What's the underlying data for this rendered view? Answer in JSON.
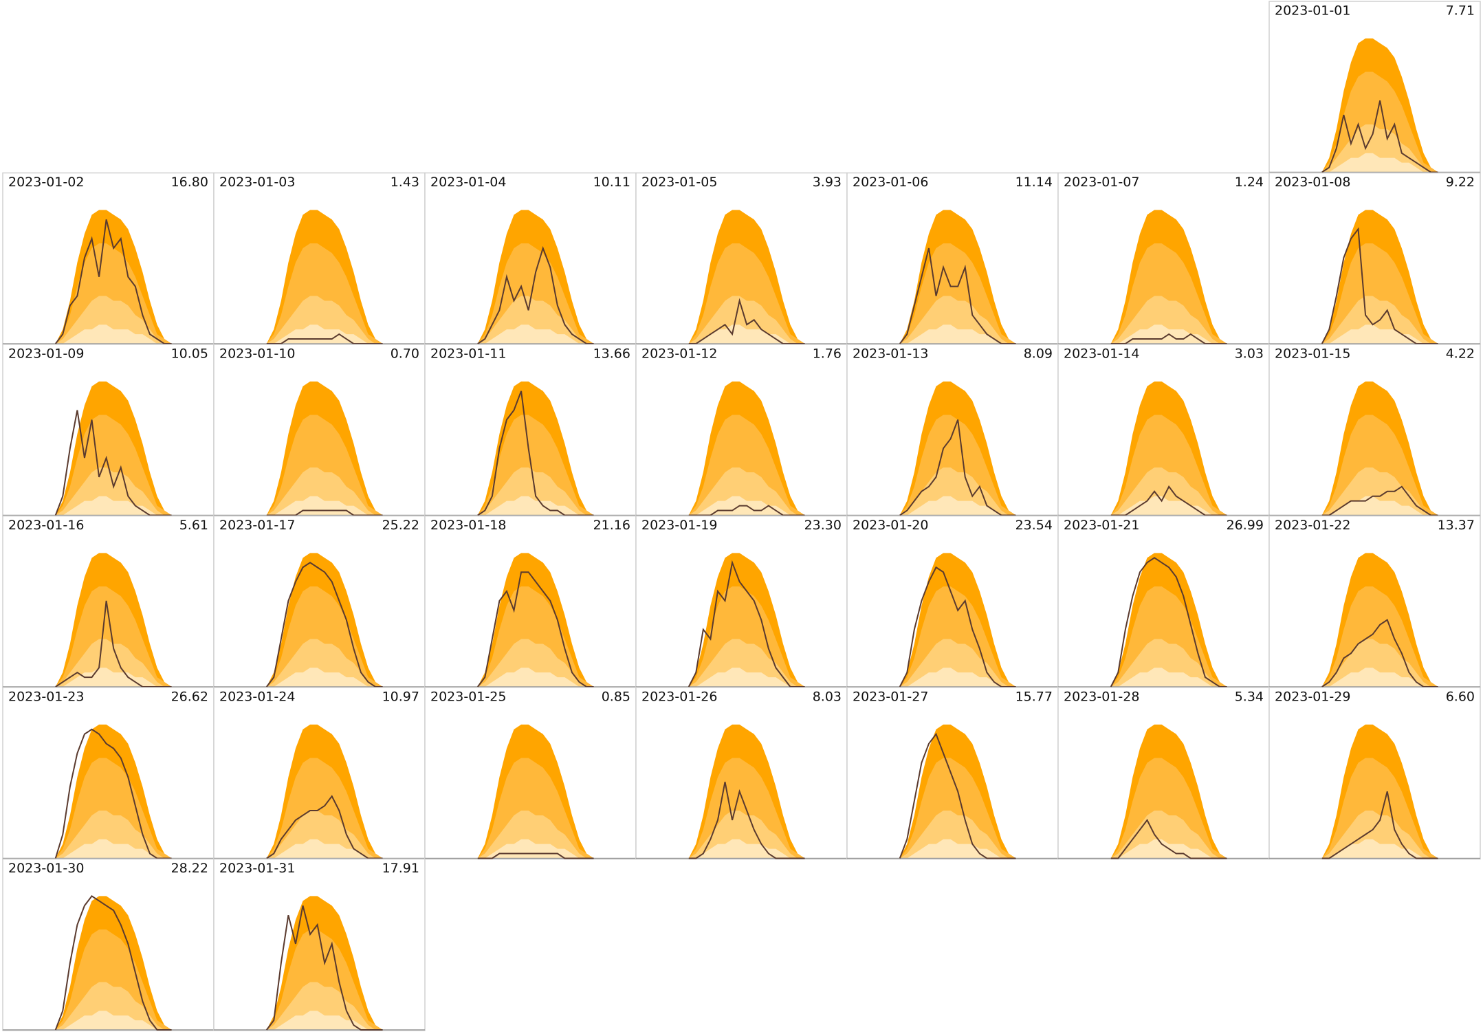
{
  "chart_data": {
    "type": "calendar-small-multiples",
    "categories": [
      "2023-01-01",
      "2023-01-02",
      "2023-01-03",
      "2023-01-04",
      "2023-01-05",
      "2023-01-06",
      "2023-01-07",
      "2023-01-08",
      "2023-01-09",
      "2023-01-10",
      "2023-01-11",
      "2023-01-12",
      "2023-01-13",
      "2023-01-14",
      "2023-01-15",
      "2023-01-16",
      "2023-01-17",
      "2023-01-18",
      "2023-01-19",
      "2023-01-20",
      "2023-01-21",
      "2023-01-22",
      "2023-01-23",
      "2023-01-24",
      "2023-01-25",
      "2023-01-26",
      "2023-01-27",
      "2023-01-28",
      "2023-01-29",
      "2023-01-30",
      "2023-01-31"
    ],
    "values": [
      7.71,
      16.8,
      1.43,
      10.11,
      3.93,
      11.14,
      1.24,
      9.22,
      10.05,
      0.7,
      13.66,
      1.76,
      8.09,
      3.03,
      4.22,
      5.61,
      25.22,
      21.16,
      23.3,
      23.54,
      26.99,
      13.37,
      26.62,
      10.97,
      0.85,
      8.03,
      15.77,
      5.34,
      6.6,
      28.22,
      17.91
    ],
    "value_labels": [
      "7.71",
      "16.80",
      "1.43",
      "10.11",
      "3.93",
      "11.14",
      "1.24",
      "9.22",
      "10.05",
      "0.70",
      "13.66",
      "1.76",
      "8.09",
      "3.03",
      "4.22",
      "5.61",
      "25.22",
      "21.16",
      "23.30",
      "23.54",
      "26.99",
      "13.37",
      "26.62",
      "10.97",
      "0.85",
      "8.03",
      "15.77",
      "5.34",
      "6.60",
      "28.22",
      "17.91"
    ],
    "ylim": [
      0,
      30
    ],
    "envelope": [
      {
        "color": "#ffa500",
        "values": [
          0,
          3,
          9,
          17,
          23,
          27,
          28,
          28,
          27,
          26,
          24,
          20,
          15,
          9,
          4,
          1,
          0
        ]
      },
      {
        "color": "#ffb83a",
        "values": [
          0,
          2,
          6,
          12,
          17,
          20,
          21,
          21,
          20,
          19,
          17,
          14,
          10,
          6,
          2,
          1,
          0
        ]
      },
      {
        "color": "#ffcf75",
        "values": [
          0,
          1,
          3,
          5,
          7,
          9,
          10,
          10,
          9,
          9,
          8,
          6,
          5,
          3,
          1,
          0,
          0
        ]
      },
      {
        "color": "#ffe7b8",
        "values": [
          0,
          0,
          1,
          2,
          3,
          3,
          4,
          4,
          3,
          3,
          3,
          2,
          2,
          1,
          0,
          0,
          0
        ]
      }
    ],
    "line_color": "#5a3a2e",
    "profiles": [
      [
        0,
        1,
        5,
        12,
        6,
        10,
        5,
        8,
        15,
        7,
        10,
        4,
        3,
        2,
        1,
        0,
        0
      ],
      [
        0,
        2,
        8,
        10,
        18,
        22,
        14,
        26,
        20,
        22,
        14,
        12,
        6,
        2,
        1,
        0,
        0
      ],
      [
        0,
        0,
        0,
        1,
        1,
        1,
        1,
        1,
        1,
        1,
        2,
        1,
        0,
        0,
        0,
        0,
        0
      ],
      [
        0,
        1,
        4,
        7,
        14,
        9,
        12,
        7,
        15,
        20,
        16,
        8,
        4,
        2,
        1,
        0,
        0
      ],
      [
        0,
        0,
        1,
        2,
        3,
        4,
        2,
        9,
        4,
        5,
        3,
        2,
        1,
        0,
        0,
        0,
        0
      ],
      [
        0,
        2,
        8,
        14,
        20,
        10,
        16,
        12,
        12,
        16,
        6,
        4,
        2,
        1,
        0,
        0,
        0
      ],
      [
        0,
        0,
        0,
        1,
        1,
        1,
        1,
        1,
        2,
        1,
        1,
        2,
        1,
        0,
        0,
        0,
        0
      ],
      [
        0,
        3,
        10,
        18,
        22,
        24,
        6,
        4,
        5,
        7,
        3,
        2,
        1,
        0,
        0,
        0,
        0
      ],
      [
        0,
        4,
        14,
        22,
        12,
        20,
        8,
        12,
        6,
        10,
        4,
        2,
        1,
        0,
        0,
        0,
        0
      ],
      [
        0,
        0,
        0,
        0,
        0,
        1,
        1,
        1,
        1,
        1,
        1,
        1,
        0,
        0,
        0,
        0,
        0
      ],
      [
        0,
        1,
        4,
        14,
        20,
        22,
        26,
        14,
        4,
        2,
        1,
        1,
        0,
        0,
        0,
        0,
        0
      ],
      [
        0,
        0,
        0,
        0,
        1,
        1,
        1,
        2,
        2,
        1,
        1,
        2,
        1,
        0,
        0,
        0,
        0
      ],
      [
        0,
        1,
        3,
        5,
        6,
        8,
        14,
        16,
        20,
        8,
        4,
        6,
        2,
        1,
        0,
        0,
        0
      ],
      [
        0,
        0,
        0,
        1,
        2,
        3,
        5,
        3,
        6,
        4,
        3,
        2,
        1,
        0,
        0,
        0,
        0
      ],
      [
        0,
        0,
        1,
        2,
        3,
        3,
        3,
        4,
        4,
        5,
        5,
        6,
        4,
        2,
        1,
        0,
        0
      ],
      [
        0,
        1,
        2,
        3,
        2,
        2,
        4,
        18,
        8,
        4,
        2,
        1,
        0,
        0,
        0,
        0,
        0
      ],
      [
        0,
        2,
        10,
        18,
        22,
        25,
        26,
        25,
        24,
        22,
        18,
        14,
        8,
        3,
        1,
        0,
        0
      ],
      [
        0,
        2,
        10,
        18,
        20,
        16,
        24,
        24,
        22,
        20,
        18,
        14,
        8,
        3,
        1,
        0,
        0
      ],
      [
        0,
        3,
        12,
        10,
        20,
        18,
        26,
        22,
        20,
        18,
        14,
        8,
        4,
        2,
        0,
        0,
        0
      ],
      [
        0,
        3,
        12,
        18,
        22,
        25,
        24,
        20,
        16,
        18,
        12,
        8,
        3,
        1,
        0,
        0,
        0
      ],
      [
        0,
        3,
        12,
        19,
        24,
        26,
        27,
        26,
        25,
        23,
        19,
        13,
        7,
        2,
        1,
        0,
        0
      ],
      [
        0,
        1,
        3,
        6,
        7,
        9,
        10,
        11,
        13,
        14,
        10,
        7,
        3,
        1,
        0,
        0,
        0
      ],
      [
        0,
        5,
        15,
        22,
        26,
        27,
        26,
        24,
        23,
        21,
        17,
        11,
        5,
        1,
        0,
        0,
        0
      ],
      [
        0,
        1,
        4,
        6,
        8,
        9,
        10,
        10,
        11,
        13,
        10,
        5,
        2,
        1,
        0,
        0,
        0
      ],
      [
        0,
        0,
        0,
        1,
        1,
        1,
        1,
        1,
        1,
        1,
        1,
        1,
        0,
        0,
        0,
        0,
        0
      ],
      [
        0,
        0,
        1,
        4,
        8,
        16,
        8,
        14,
        10,
        6,
        3,
        1,
        0,
        0,
        0,
        0,
        0
      ],
      [
        0,
        4,
        12,
        20,
        24,
        26,
        22,
        18,
        14,
        8,
        3,
        1,
        0,
        0,
        0,
        0,
        0
      ],
      [
        0,
        0,
        2,
        4,
        6,
        8,
        5,
        3,
        2,
        1,
        1,
        0,
        0,
        0,
        0,
        0,
        0
      ],
      [
        0,
        0,
        1,
        2,
        3,
        4,
        5,
        6,
        8,
        14,
        6,
        3,
        1,
        0,
        0,
        0,
        0
      ],
      [
        0,
        4,
        14,
        22,
        26,
        28,
        27,
        26,
        25,
        22,
        18,
        12,
        6,
        2,
        0,
        0,
        0
      ],
      [
        0,
        2,
        14,
        24,
        18,
        26,
        20,
        22,
        14,
        18,
        10,
        4,
        1,
        0,
        0,
        0,
        0
      ]
    ]
  }
}
